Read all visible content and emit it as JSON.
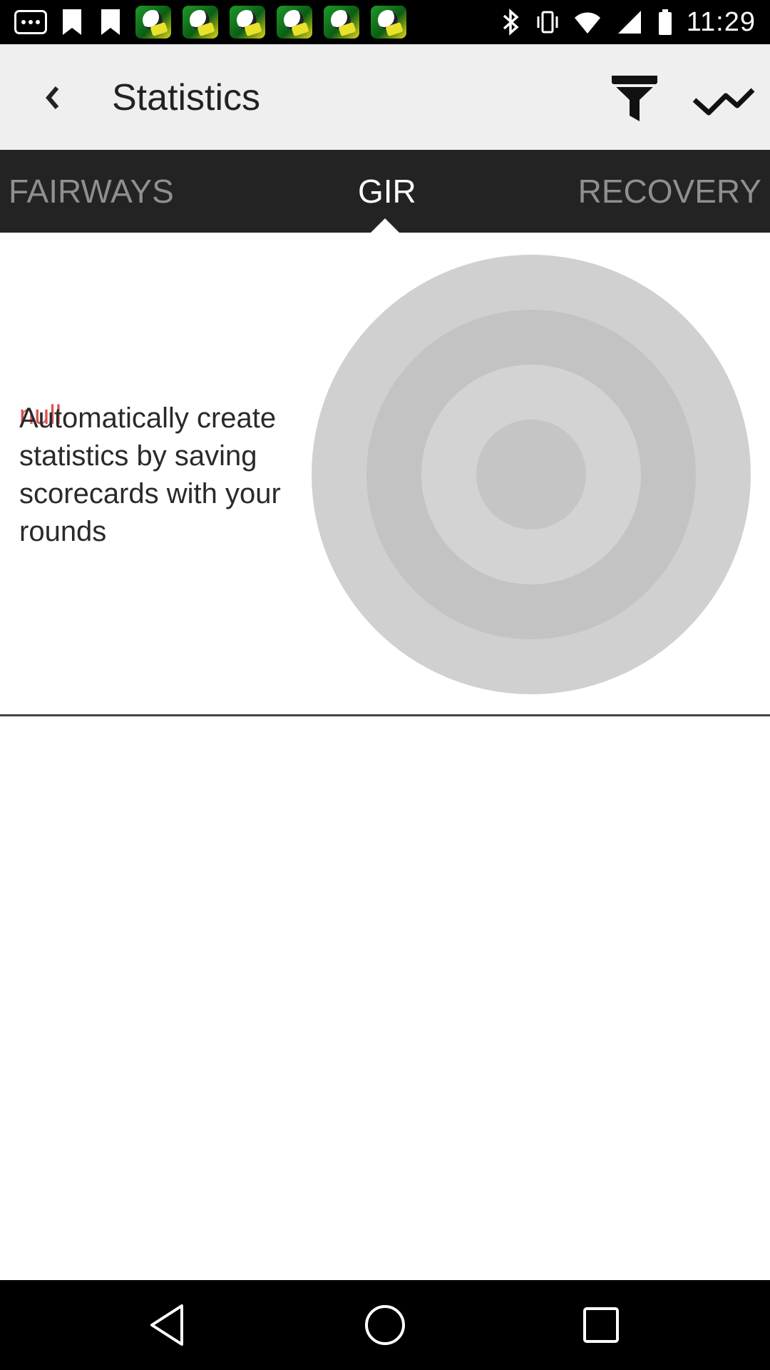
{
  "status_bar": {
    "time": "11:29",
    "notification_icons": [
      "more-dots-icon",
      "bookmark-icon",
      "bookmark-icon",
      "soccer-app-icon",
      "soccer-app-icon",
      "soccer-app-icon",
      "soccer-app-icon",
      "soccer-app-icon",
      "soccer-app-icon"
    ],
    "system_icons": [
      "bluetooth-icon",
      "vibrate-icon",
      "wifi-icon",
      "signal-icon",
      "battery-icon"
    ]
  },
  "app_bar": {
    "title": "Statistics",
    "actions": [
      "filter-icon",
      "trend-line-icon"
    ]
  },
  "tabs": [
    {
      "label": "FAIRWAYS",
      "active": false
    },
    {
      "label": "GIR",
      "active": true
    },
    {
      "label": "RECOVERY",
      "active": false
    }
  ],
  "content": {
    "null_label": "null",
    "message": "Automatically create statistics by saving scorecards with your rounds",
    "target_colors": [
      "#d0d0d0",
      "#c3c3c3",
      "#d3d3d3",
      "#c5c5c5"
    ]
  },
  "nav_bar": {
    "buttons": [
      "back-triangle-icon",
      "home-circle-icon",
      "recent-square-icon"
    ]
  }
}
